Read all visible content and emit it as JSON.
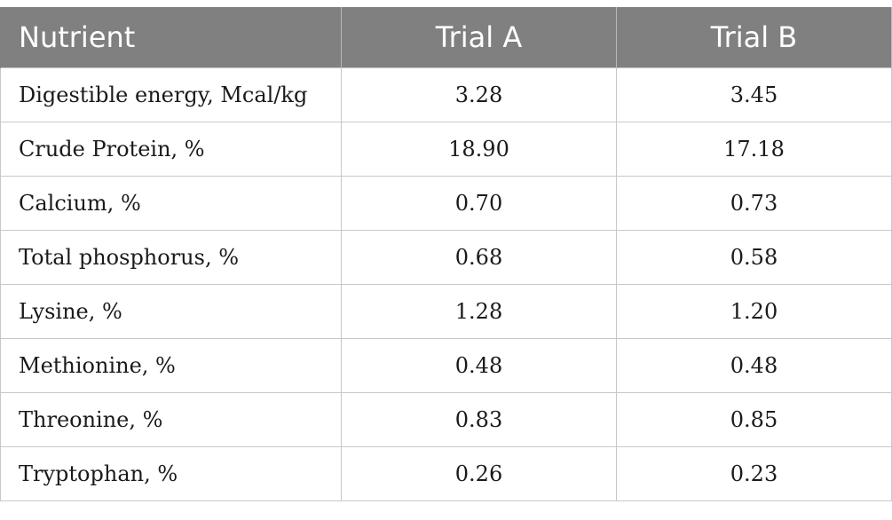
{
  "table": {
    "headers": [
      "Nutrient",
      "Trial A",
      "Trial B"
    ],
    "rows": [
      [
        "Digestible energy, Mcal/kg",
        "3.28",
        "3.45"
      ],
      [
        "Crude Protein, %",
        "18.90",
        "17.18"
      ],
      [
        "Calcium, %",
        "0.70",
        "0.73"
      ],
      [
        "Total phosphorus, %",
        "0.68",
        "0.58"
      ],
      [
        "Lysine, %",
        "1.28",
        "1.20"
      ],
      [
        "Methionine, %",
        "0.48",
        "0.48"
      ],
      [
        "Threonine, %",
        "0.83",
        "0.85"
      ],
      [
        "Tryptophan, %",
        "0.26",
        "0.23"
      ]
    ]
  },
  "colors": {
    "header_bg": "#808080",
    "header_text": "#ffffff",
    "grid": "#c8c8c8"
  }
}
